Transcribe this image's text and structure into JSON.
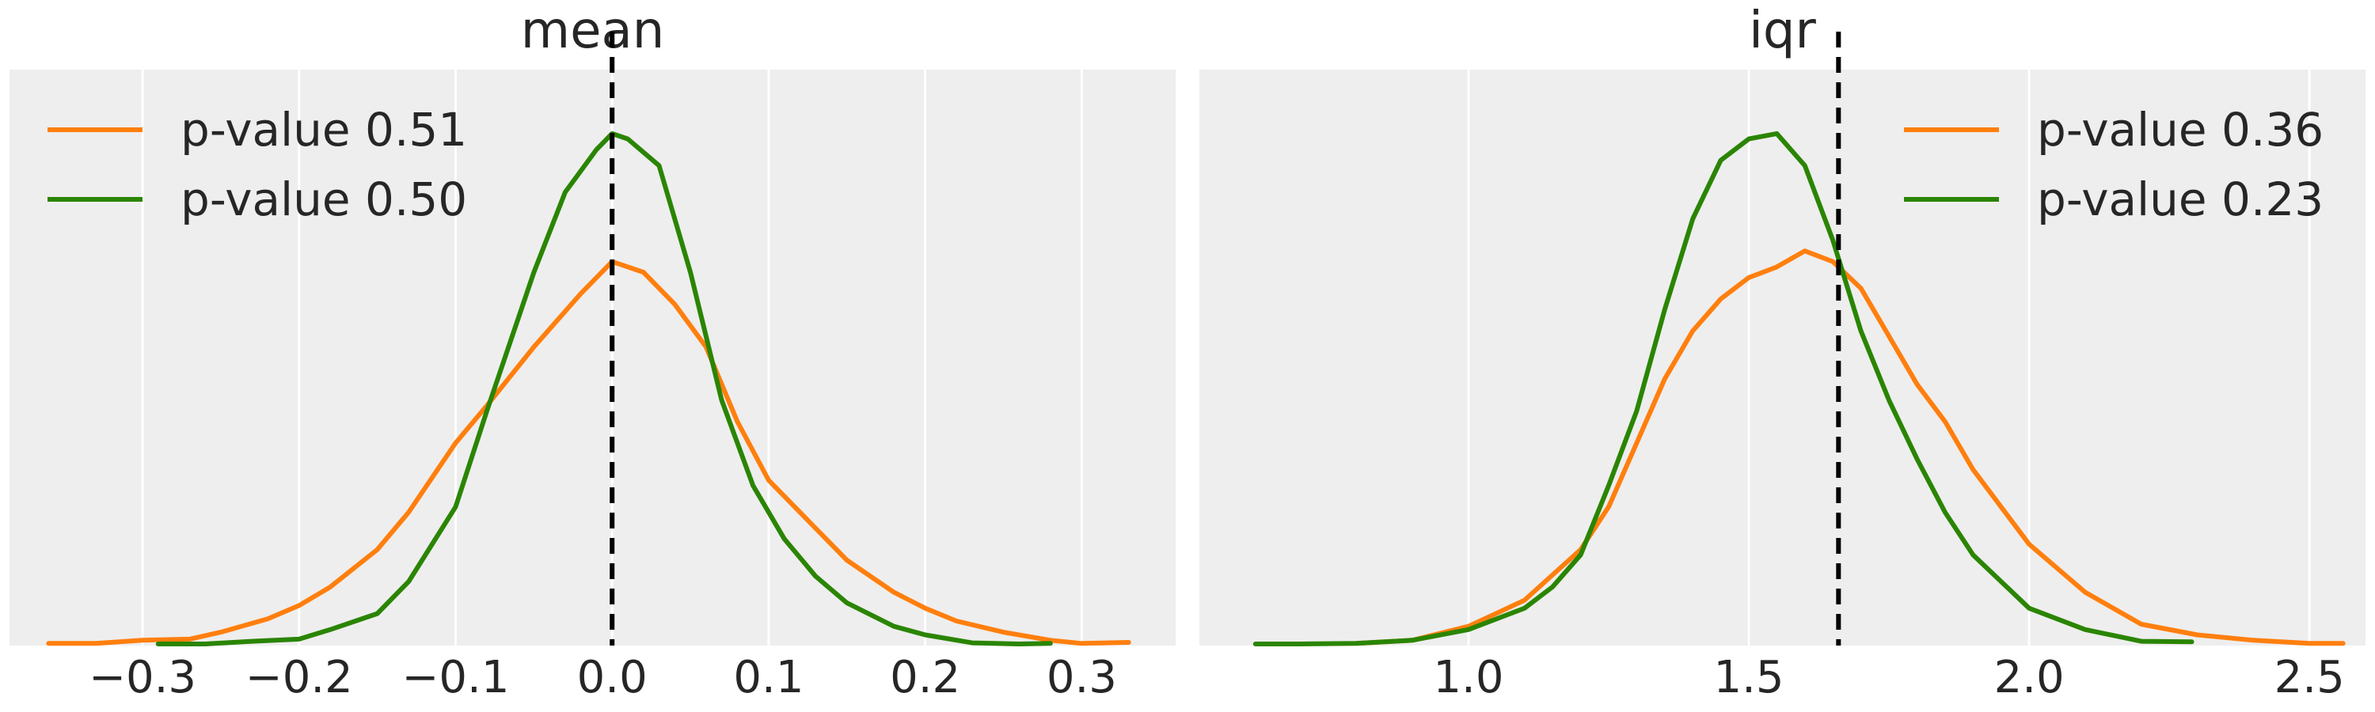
{
  "chart_data": [
    {
      "type": "line",
      "title": "mean",
      "xlabel": "",
      "ylabel": "",
      "xlim": [
        -0.385,
        0.36
      ],
      "ylim": [
        0,
        1.08
      ],
      "xticks": [
        -0.3,
        -0.2,
        -0.1,
        0.0,
        0.1,
        0.2,
        0.3
      ],
      "xtick_labels": [
        "−0.3",
        "−0.2",
        "−0.1",
        "0.0",
        "0.1",
        "0.2",
        "0.3"
      ],
      "grid": true,
      "legend_position": "top-left",
      "reference_line": {
        "x": 0.0,
        "style": "dashed",
        "color": "#000000"
      },
      "series": [
        {
          "name": "p-value 0.51",
          "color": "#ff7f0e",
          "x": [
            -0.36,
            -0.33,
            -0.3,
            -0.27,
            -0.25,
            -0.22,
            -0.2,
            -0.18,
            -0.15,
            -0.13,
            -0.1,
            -0.08,
            -0.05,
            -0.02,
            0.0,
            0.02,
            0.04,
            0.06,
            0.08,
            0.1,
            0.13,
            0.15,
            0.18,
            0.2,
            0.22,
            0.25,
            0.28,
            0.3,
            0.33
          ],
          "y": [
            0.004,
            0.004,
            0.01,
            0.012,
            0.025,
            0.05,
            0.075,
            0.11,
            0.18,
            0.25,
            0.38,
            0.45,
            0.56,
            0.66,
            0.72,
            0.7,
            0.64,
            0.56,
            0.42,
            0.31,
            0.22,
            0.16,
            0.1,
            0.07,
            0.046,
            0.025,
            0.01,
            0.004,
            0.006
          ]
        },
        {
          "name": "p-value 0.50",
          "color": "#2a8502",
          "x": [
            -0.29,
            -0.26,
            -0.23,
            -0.2,
            -0.18,
            -0.15,
            -0.13,
            -0.1,
            -0.08,
            -0.05,
            -0.03,
            -0.01,
            0.0,
            0.01,
            0.03,
            0.05,
            0.07,
            0.09,
            0.11,
            0.13,
            0.15,
            0.18,
            0.2,
            0.23,
            0.26,
            0.28
          ],
          "y": [
            0.003,
            0.003,
            0.008,
            0.012,
            0.03,
            0.06,
            0.12,
            0.26,
            0.44,
            0.7,
            0.85,
            0.93,
            0.96,
            0.95,
            0.9,
            0.7,
            0.46,
            0.3,
            0.2,
            0.13,
            0.08,
            0.036,
            0.02,
            0.005,
            0.003,
            0.004
          ]
        }
      ]
    },
    {
      "type": "line",
      "title": "iqr",
      "xlabel": "",
      "ylabel": "",
      "xlim": [
        0.52,
        2.6
      ],
      "ylim": [
        0,
        1.08
      ],
      "xticks": [
        1.0,
        1.5,
        2.0,
        2.5
      ],
      "xtick_labels": [
        "1.0",
        "1.5",
        "2.0",
        "2.5"
      ],
      "grid": true,
      "legend_position": "top-right",
      "reference_line": {
        "x": 1.66,
        "style": "dashed",
        "color": "#000000"
      },
      "series": [
        {
          "name": "p-value 0.36",
          "color": "#ff7f0e",
          "x": [
            0.8,
            0.9,
            1.0,
            1.1,
            1.2,
            1.25,
            1.3,
            1.35,
            1.4,
            1.45,
            1.5,
            1.55,
            1.6,
            1.65,
            1.7,
            1.75,
            1.8,
            1.85,
            1.9,
            2.0,
            2.1,
            2.2,
            2.3,
            2.4,
            2.5,
            2.56
          ],
          "y": [
            0.004,
            0.01,
            0.036,
            0.085,
            0.18,
            0.26,
            0.38,
            0.5,
            0.59,
            0.65,
            0.69,
            0.71,
            0.74,
            0.72,
            0.67,
            0.58,
            0.49,
            0.42,
            0.33,
            0.19,
            0.1,
            0.04,
            0.02,
            0.01,
            0.004,
            0.004
          ]
        },
        {
          "name": "p-value 0.23",
          "color": "#2a8502",
          "x": [
            0.62,
            0.7,
            0.8,
            0.9,
            1.0,
            1.1,
            1.15,
            1.2,
            1.25,
            1.3,
            1.35,
            1.4,
            1.45,
            1.5,
            1.55,
            1.6,
            1.65,
            1.7,
            1.75,
            1.8,
            1.85,
            1.9,
            2.0,
            2.1,
            2.2,
            2.29
          ],
          "y": [
            0.003,
            0.003,
            0.004,
            0.01,
            0.03,
            0.07,
            0.11,
            0.17,
            0.3,
            0.44,
            0.63,
            0.8,
            0.91,
            0.95,
            0.96,
            0.9,
            0.76,
            0.59,
            0.46,
            0.35,
            0.25,
            0.17,
            0.07,
            0.03,
            0.008,
            0.007
          ]
        }
      ]
    }
  ]
}
